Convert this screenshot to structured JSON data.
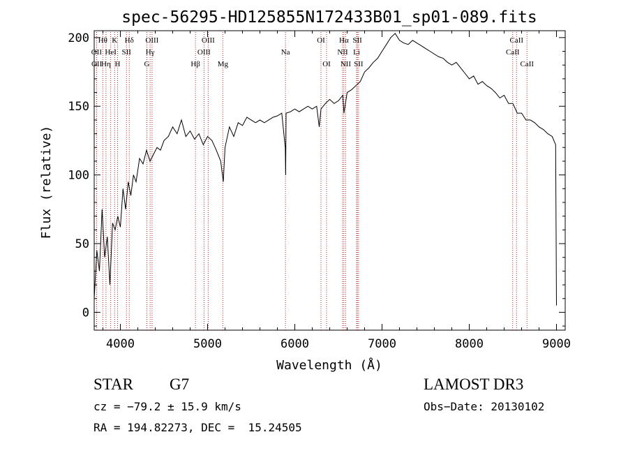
{
  "chart_data": {
    "type": "line",
    "title": "spec-56295-HD125855N172433B01_sp01-089.fits",
    "xlabel": "Wavelength (Å)",
    "ylabel": "Flux (relative)",
    "xlim": [
      3700,
      9100
    ],
    "ylim": [
      -13,
      205
    ],
    "xticks": [
      4000,
      5000,
      6000,
      7000,
      8000,
      9000
    ],
    "yticks": [
      0,
      50,
      100,
      150,
      200
    ],
    "series": [
      {
        "name": "spectrum",
        "x": [
          3700,
          3730,
          3760,
          3790,
          3820,
          3850,
          3880,
          3910,
          3940,
          3970,
          4000,
          4030,
          4060,
          4090,
          4120,
          4150,
          4180,
          4220,
          4260,
          4300,
          4340,
          4380,
          4420,
          4460,
          4500,
          4550,
          4600,
          4650,
          4700,
          4750,
          4800,
          4850,
          4900,
          4950,
          5000,
          5050,
          5100,
          5150,
          5180,
          5200,
          5250,
          5300,
          5350,
          5400,
          5450,
          5500,
          5550,
          5600,
          5650,
          5700,
          5750,
          5800,
          5850,
          5890,
          5895,
          5900,
          5950,
          6000,
          6050,
          6100,
          6150,
          6200,
          6250,
          6280,
          6300,
          6350,
          6400,
          6450,
          6500,
          6550,
          6563,
          6600,
          6650,
          6700,
          6750,
          6800,
          6850,
          6900,
          6950,
          7000,
          7050,
          7100,
          7150,
          7200,
          7250,
          7300,
          7350,
          7400,
          7450,
          7500,
          7550,
          7600,
          7650,
          7700,
          7750,
          7800,
          7850,
          7900,
          7950,
          8000,
          8050,
          8100,
          8150,
          8200,
          8250,
          8300,
          8350,
          8400,
          8450,
          8500,
          8550,
          8600,
          8650,
          8700,
          8750,
          8800,
          8850,
          8900,
          8950,
          8970,
          8990,
          9000
        ],
        "y": [
          10,
          45,
          30,
          75,
          40,
          55,
          20,
          65,
          60,
          70,
          62,
          90,
          75,
          95,
          85,
          100,
          95,
          112,
          108,
          118,
          110,
          115,
          120,
          118,
          125,
          128,
          135,
          130,
          140,
          128,
          132,
          126,
          130,
          122,
          128,
          125,
          118,
          110,
          95,
          120,
          135,
          128,
          138,
          136,
          142,
          140,
          138,
          140,
          138,
          140,
          142,
          143,
          145,
          120,
          100,
          145,
          146,
          148,
          146,
          148,
          150,
          148,
          150,
          135,
          148,
          152,
          155,
          152,
          154,
          158,
          145,
          160,
          162,
          165,
          168,
          175,
          178,
          182,
          185,
          190,
          195,
          200,
          203,
          198,
          196,
          195,
          198,
          196,
          194,
          192,
          190,
          188,
          186,
          185,
          182,
          180,
          182,
          178,
          174,
          170,
          172,
          166,
          168,
          165,
          163,
          160,
          156,
          158,
          152,
          152,
          145,
          145,
          140,
          140,
          138,
          135,
          133,
          130,
          128,
          125,
          122,
          5
        ]
      }
    ],
    "lines": [
      {
        "label": "Hθ",
        "x": 3798,
        "row": 0
      },
      {
        "label": "OII",
        "x": 3727,
        "row": 1
      },
      {
        "label": "OII",
        "x": 3729,
        "row": 2
      },
      {
        "label": "Hη",
        "x": 3835,
        "row": 2
      },
      {
        "label": "HeI",
        "x": 3889,
        "row": 1
      },
      {
        "label": "K",
        "x": 3934,
        "row": 0
      },
      {
        "label": "H",
        "x": 3968,
        "row": 2
      },
      {
        "label": "SII",
        "x": 4070,
        "row": 1
      },
      {
        "label": "Hδ",
        "x": 4102,
        "row": 0
      },
      {
        "label": "G",
        "x": 4304,
        "row": 2
      },
      {
        "label": "OIII",
        "x": 4363,
        "row": 0
      },
      {
        "label": "Hγ",
        "x": 4341,
        "row": 1
      },
      {
        "label": "Hβ",
        "x": 4861,
        "row": 2
      },
      {
        "label": "OIII",
        "x": 4959,
        "row": 1
      },
      {
        "label": "OIII",
        "x": 5007,
        "row": 0
      },
      {
        "label": "Mg",
        "x": 5175,
        "row": 2
      },
      {
        "label": "Na",
        "x": 5893,
        "row": 1
      },
      {
        "label": "OI",
        "x": 6300,
        "row": 0
      },
      {
        "label": "OI",
        "x": 6364,
        "row": 2
      },
      {
        "label": "Hα",
        "x": 6563,
        "row": 0
      },
      {
        "label": "NII",
        "x": 6548,
        "row": 1
      },
      {
        "label": "NII",
        "x": 6583,
        "row": 2
      },
      {
        "label": "SII",
        "x": 6717,
        "row": 0
      },
      {
        "label": "Li",
        "x": 6708,
        "row": 1
      },
      {
        "label": "SII",
        "x": 6731,
        "row": 2
      },
      {
        "label": "CaII",
        "x": 8498,
        "row": 1
      },
      {
        "label": "CaII",
        "x": 8542,
        "row": 0
      },
      {
        "label": "CaII",
        "x": 8662,
        "row": 2
      }
    ],
    "line_color": "#b22222"
  },
  "info": {
    "object_type": "STAR",
    "subclass": "G7",
    "survey": "LAMOST DR3",
    "cz": "cz = −79.2 ± 15.9 km/s",
    "obs_date": "Obs−Date: 20130102",
    "coords": "RA = 194.82273, DEC =  15.24505"
  }
}
